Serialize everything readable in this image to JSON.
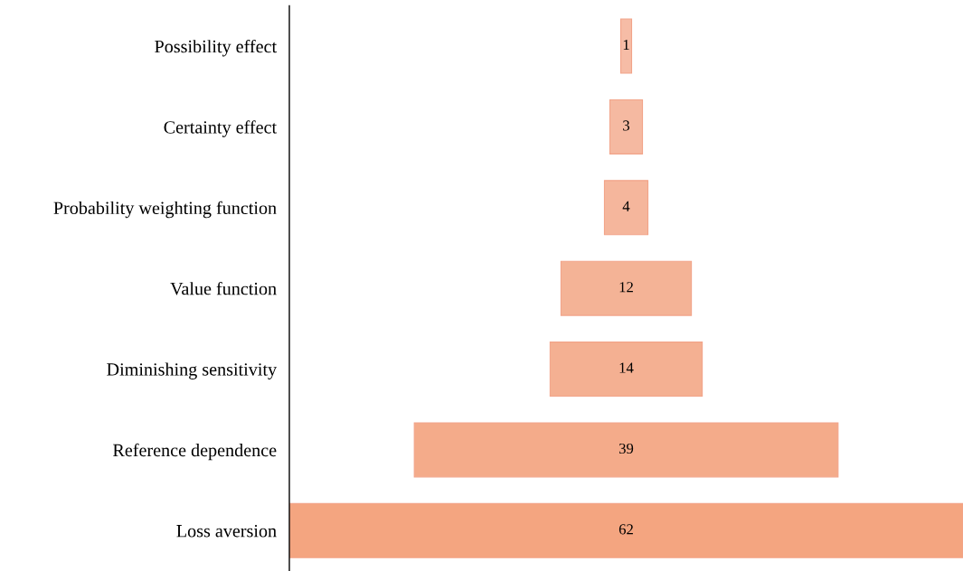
{
  "chart_data": {
    "type": "other",
    "categories": [
      "Possibility effect",
      "Certainty effect",
      "Probability weighting function",
      "Value function",
      "Diminishing sensitivity",
      "Reference dependence",
      "Loss aversion"
    ],
    "values": [
      1,
      3,
      4,
      12,
      14,
      39,
      62
    ],
    "colors": [
      "#f6bca6",
      "#f5b9a1",
      "#f5b69c",
      "#f4b396",
      "#f4b092",
      "#f4ab8a",
      "#f4a580"
    ],
    "data_labels": true
  }
}
